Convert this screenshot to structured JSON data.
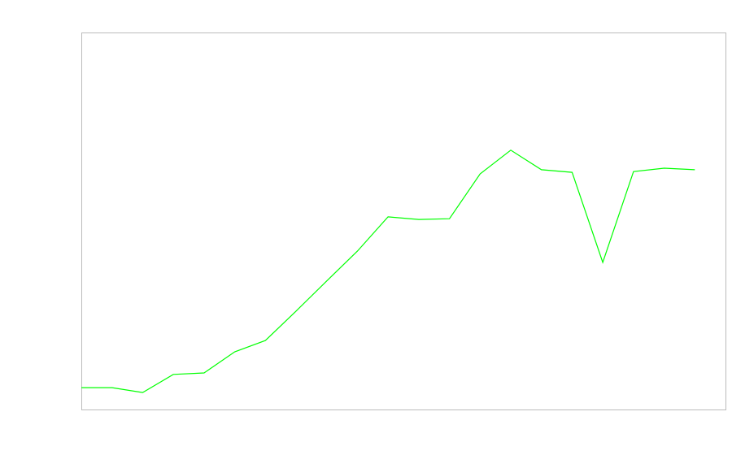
{
  "chart_data": {
    "type": "line",
    "title": "",
    "xlabel": "",
    "ylabel": "",
    "x": [
      0,
      1,
      2,
      3,
      4,
      5,
      6,
      7,
      8,
      9,
      10,
      11,
      12,
      13,
      14,
      15,
      16,
      17,
      18,
      19,
      20
    ],
    "series": [
      {
        "values": [
          5.8,
          5.8,
          4.5,
          9.3,
          9.7,
          15.3,
          18.3,
          26.1,
          34.1,
          42.0,
          51.1,
          50.4,
          50.6,
          62.5,
          68.8,
          63.6,
          62.9,
          39.0,
          63.1,
          64.0,
          63.6
        ],
        "color": "#00ff00"
      }
    ],
    "xlim": [
      0,
      21
    ],
    "ylim": [
      0,
      100
    ],
    "grid": false,
    "frame_color": "#bbbbbb"
  }
}
